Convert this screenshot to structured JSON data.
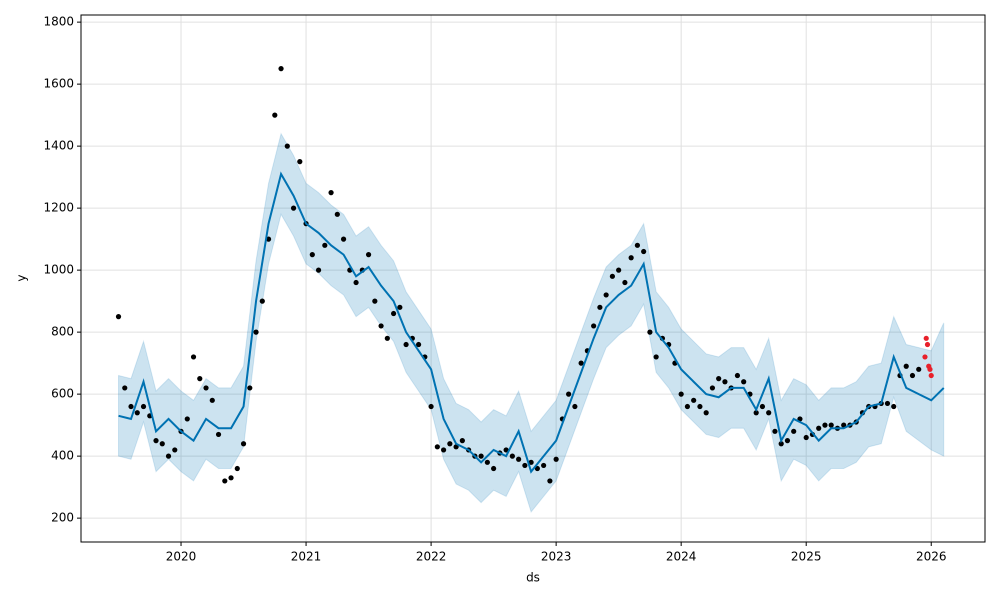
{
  "chart_data": {
    "type": "line",
    "xlabel": "ds",
    "ylabel": "y",
    "xlim": [
      2019.2,
      2026.43
    ],
    "ylim": [
      123,
      1823
    ],
    "xticks": [
      2020,
      2021,
      2022,
      2023,
      2024,
      2025,
      2026
    ],
    "yticks": [
      200,
      400,
      600,
      800,
      1000,
      1200,
      1400,
      1600,
      1800
    ],
    "grid": true,
    "observed": {
      "color": "#000000",
      "x": [
        2019.5,
        2019.55,
        2019.6,
        2019.65,
        2019.7,
        2019.75,
        2019.8,
        2019.85,
        2019.9,
        2019.95,
        2020.0,
        2020.05,
        2020.1,
        2020.15,
        2020.2,
        2020.25,
        2020.3,
        2020.35,
        2020.4,
        2020.45,
        2020.5,
        2020.55,
        2020.6,
        2020.65,
        2020.7,
        2020.75,
        2020.8,
        2020.85,
        2020.9,
        2020.95,
        2021.0,
        2021.05,
        2021.1,
        2021.15,
        2021.2,
        2021.25,
        2021.3,
        2021.35,
        2021.4,
        2021.45,
        2021.5,
        2021.55,
        2021.6,
        2021.65,
        2021.7,
        2021.75,
        2021.8,
        2021.85,
        2021.9,
        2021.95,
        2022.0,
        2022.05,
        2022.1,
        2022.15,
        2022.2,
        2022.25,
        2022.3,
        2022.35,
        2022.4,
        2022.45,
        2022.5,
        2022.55,
        2022.6,
        2022.65,
        2022.7,
        2022.75,
        2022.8,
        2022.85,
        2022.9,
        2022.95,
        2023.0,
        2023.05,
        2023.1,
        2023.15,
        2023.2,
        2023.25,
        2023.3,
        2023.35,
        2023.4,
        2023.45,
        2023.5,
        2023.55,
        2023.6,
        2023.65,
        2023.7,
        2023.75,
        2023.8,
        2023.85,
        2023.9,
        2023.95,
        2024.0,
        2024.05,
        2024.1,
        2024.15,
        2024.2,
        2024.25,
        2024.3,
        2024.35,
        2024.4,
        2024.45,
        2024.5,
        2024.55,
        2024.6,
        2024.65,
        2024.7,
        2024.75,
        2024.8,
        2024.85,
        2024.9,
        2024.95,
        2025.0,
        2025.05,
        2025.1,
        2025.15,
        2025.2,
        2025.25,
        2025.3,
        2025.35,
        2025.4,
        2025.45,
        2025.5,
        2025.55,
        2025.6,
        2025.65,
        2025.7,
        2025.75,
        2025.8,
        2025.85,
        2025.9
      ],
      "values": [
        850,
        620,
        560,
        540,
        560,
        530,
        450,
        440,
        400,
        420,
        480,
        520,
        720,
        650,
        620,
        580,
        470,
        320,
        330,
        360,
        440,
        620,
        800,
        900,
        1100,
        1500,
        1650,
        1400,
        1200,
        1350,
        1150,
        1050,
        1000,
        1080,
        1250,
        1180,
        1100,
        1000,
        960,
        1000,
        1050,
        900,
        820,
        780,
        860,
        880,
        760,
        780,
        760,
        720,
        560,
        430,
        420,
        440,
        430,
        450,
        420,
        400,
        400,
        380,
        360,
        410,
        420,
        400,
        390,
        370,
        380,
        360,
        370,
        320,
        390,
        520,
        600,
        560,
        700,
        740,
        820,
        880,
        920,
        980,
        1000,
        960,
        1040,
        1080,
        1060,
        800,
        720,
        780,
        760,
        700,
        600,
        560,
        580,
        560,
        540,
        620,
        650,
        640,
        620,
        660,
        640,
        600,
        540,
        560,
        540,
        480,
        440,
        450,
        480,
        520,
        460,
        470,
        490,
        500,
        500,
        490,
        500,
        500,
        510,
        540,
        560,
        560,
        570,
        570,
        560,
        660,
        690,
        660,
        680
      ]
    },
    "recent": {
      "color": "#e8202a",
      "x": [
        2025.95,
        2025.96,
        2025.97,
        2025.98,
        2025.99,
        2026.0
      ],
      "values": [
        720,
        780,
        760,
        690,
        680,
        660
      ]
    },
    "forecast": {
      "color": "#0072b2",
      "x": [
        2019.5,
        2019.6,
        2019.7,
        2019.8,
        2019.9,
        2020.0,
        2020.1,
        2020.2,
        2020.3,
        2020.4,
        2020.5,
        2020.6,
        2020.7,
        2020.8,
        2020.9,
        2021.0,
        2021.1,
        2021.2,
        2021.3,
        2021.4,
        2021.5,
        2021.6,
        2021.7,
        2021.8,
        2021.9,
        2022.0,
        2022.1,
        2022.2,
        2022.3,
        2022.4,
        2022.5,
        2022.6,
        2022.7,
        2022.8,
        2022.9,
        2023.0,
        2023.1,
        2023.2,
        2023.3,
        2023.4,
        2023.5,
        2023.6,
        2023.7,
        2023.8,
        2023.9,
        2024.0,
        2024.1,
        2024.2,
        2024.3,
        2024.4,
        2024.5,
        2024.6,
        2024.7,
        2024.8,
        2024.9,
        2025.0,
        2025.1,
        2025.2,
        2025.3,
        2025.4,
        2025.5,
        2025.6,
        2025.7,
        2025.8,
        2025.9,
        2026.0,
        2026.1
      ],
      "values": [
        530,
        520,
        640,
        480,
        520,
        480,
        450,
        520,
        490,
        490,
        560,
        900,
        1150,
        1310,
        1240,
        1150,
        1120,
        1080,
        1050,
        980,
        1010,
        950,
        900,
        800,
        740,
        680,
        520,
        440,
        420,
        380,
        420,
        400,
        480,
        350,
        400,
        450,
        560,
        670,
        780,
        880,
        920,
        950,
        1020,
        800,
        750,
        680,
        640,
        600,
        590,
        620,
        620,
        550,
        650,
        450,
        520,
        500,
        450,
        490,
        490,
        510,
        560,
        570,
        720,
        620,
        600,
        580,
        620
      ]
    },
    "interval": {
      "color": "#0072b2",
      "x": [
        2019.5,
        2019.6,
        2019.7,
        2019.8,
        2019.9,
        2020.0,
        2020.1,
        2020.2,
        2020.3,
        2020.4,
        2020.5,
        2020.6,
        2020.7,
        2020.8,
        2020.9,
        2021.0,
        2021.1,
        2021.2,
        2021.3,
        2021.4,
        2021.5,
        2021.6,
        2021.7,
        2021.8,
        2021.9,
        2022.0,
        2022.1,
        2022.2,
        2022.3,
        2022.4,
        2022.5,
        2022.6,
        2022.7,
        2022.8,
        2022.9,
        2023.0,
        2023.1,
        2023.2,
        2023.3,
        2023.4,
        2023.5,
        2023.6,
        2023.7,
        2023.8,
        2023.9,
        2024.0,
        2024.1,
        2024.2,
        2024.3,
        2024.4,
        2024.5,
        2024.6,
        2024.7,
        2024.8,
        2024.9,
        2025.0,
        2025.1,
        2025.2,
        2025.3,
        2025.4,
        2025.5,
        2025.6,
        2025.7,
        2025.8,
        2025.9,
        2026.0,
        2026.1
      ],
      "lower": [
        400,
        390,
        510,
        350,
        390,
        350,
        320,
        390,
        360,
        360,
        430,
        770,
        1020,
        1180,
        1110,
        1020,
        990,
        950,
        920,
        850,
        880,
        820,
        770,
        670,
        610,
        550,
        390,
        310,
        290,
        250,
        290,
        270,
        350,
        220,
        270,
        320,
        430,
        540,
        650,
        750,
        790,
        820,
        890,
        670,
        620,
        550,
        510,
        470,
        460,
        490,
        490,
        420,
        520,
        320,
        390,
        370,
        320,
        360,
        360,
        380,
        430,
        440,
        590,
        480,
        450,
        420,
        400
      ],
      "upper": [
        660,
        650,
        770,
        610,
        650,
        610,
        580,
        650,
        620,
        620,
        690,
        1030,
        1280,
        1440,
        1370,
        1280,
        1250,
        1210,
        1180,
        1110,
        1140,
        1080,
        1030,
        930,
        870,
        810,
        650,
        570,
        550,
        510,
        550,
        530,
        610,
        480,
        530,
        580,
        690,
        800,
        910,
        1010,
        1050,
        1080,
        1150,
        930,
        880,
        810,
        770,
        730,
        720,
        750,
        750,
        680,
        780,
        580,
        650,
        630,
        580,
        620,
        620,
        640,
        690,
        700,
        850,
        760,
        750,
        740,
        830
      ]
    }
  }
}
